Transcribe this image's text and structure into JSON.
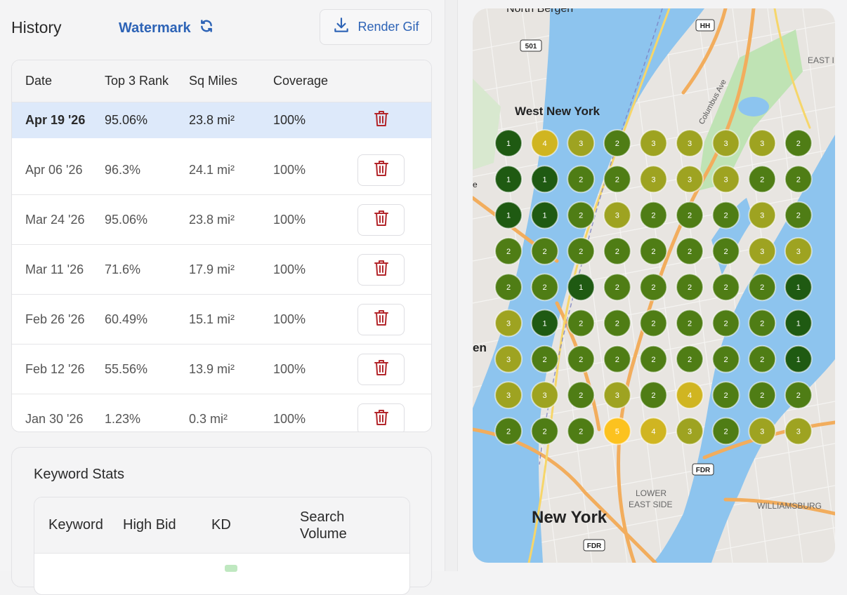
{
  "header": {
    "title": "History",
    "watermark": "Watermark",
    "render_label": "Render Gif"
  },
  "history": {
    "columns": [
      "Date",
      "Top 3 Rank",
      "Sq Miles",
      "Coverage"
    ],
    "rows": [
      {
        "date": "Apr 19 '26",
        "rank": "95.06%",
        "sq": "23.8 mi²",
        "cov": "100%",
        "selected": true
      },
      {
        "date": "Apr 06 '26",
        "rank": "96.3%",
        "sq": "24.1 mi²",
        "cov": "100%"
      },
      {
        "date": "Mar 24 '26",
        "rank": "95.06%",
        "sq": "23.8 mi²",
        "cov": "100%"
      },
      {
        "date": "Mar 11 '26",
        "rank": "71.6%",
        "sq": "17.9 mi²",
        "cov": "100%"
      },
      {
        "date": "Feb 26 '26",
        "rank": "60.49%",
        "sq": "15.1 mi²",
        "cov": "100%"
      },
      {
        "date": "Feb 12 '26",
        "rank": "55.56%",
        "sq": "13.9 mi²",
        "cov": "100%"
      },
      {
        "date": "Jan 30 '26",
        "rank": "1.23%",
        "sq": "0.3 mi²",
        "cov": "100%"
      }
    ]
  },
  "keyword_stats": {
    "title": "Keyword Stats",
    "columns": [
      "Keyword",
      "High Bid",
      "KD",
      "Search Volume"
    ]
  },
  "map": {
    "labels": {
      "north_bergen": "North Bergen",
      "west_new_york": "West New York",
      "columbus_ave": "Columbus Ave",
      "east": "EAST I",
      "lower_east_side_1": "LOWER",
      "lower_east_side_2": "EAST SIDE",
      "williamsburg": "WILLIAMSBURG",
      "new_york": "New York",
      "en": "en",
      "e": "e"
    },
    "shields": {
      "hh": "HH",
      "r501": "501",
      "fdr1": "FDR",
      "fdr2": "FDR"
    },
    "grid_ranks": [
      [
        1,
        4,
        3,
        2,
        3,
        3,
        3,
        3,
        2
      ],
      [
        1,
        1,
        2,
        2,
        3,
        3,
        3,
        2,
        2
      ],
      [
        1,
        1,
        2,
        3,
        2,
        2,
        2,
        3,
        2
      ],
      [
        2,
        2,
        2,
        2,
        2,
        2,
        2,
        3,
        3
      ],
      [
        2,
        2,
        1,
        2,
        2,
        2,
        2,
        2,
        1
      ],
      [
        3,
        1,
        2,
        2,
        2,
        2,
        2,
        2,
        1
      ],
      [
        3,
        2,
        2,
        2,
        2,
        2,
        2,
        2,
        1
      ],
      [
        3,
        3,
        2,
        3,
        2,
        4,
        2,
        2,
        2
      ],
      [
        2,
        2,
        2,
        5,
        4,
        3,
        2,
        3,
        3
      ]
    ],
    "rank_colors": {
      "1": "#1f5a12",
      "2": "#4f7d15",
      "3": "#9ea321",
      "4": "#d0b521",
      "5": "#fcc21f"
    }
  }
}
